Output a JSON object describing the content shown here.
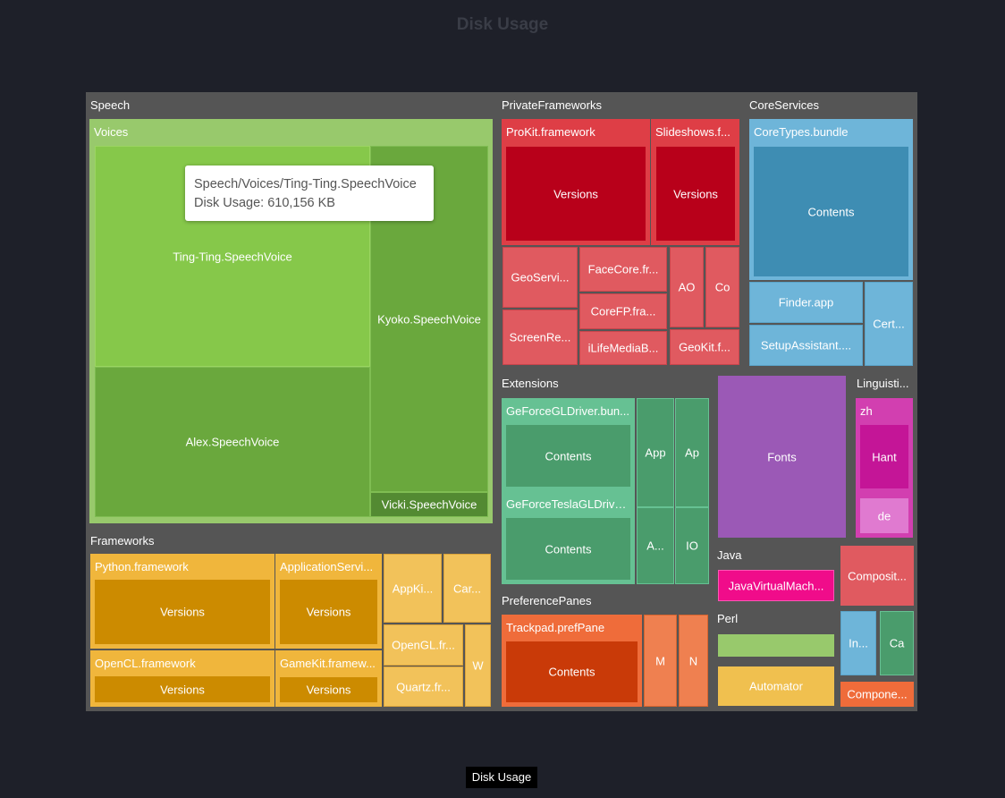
{
  "title": "Disk Usage",
  "legend_label": "Disk Usage",
  "tooltip": {
    "path": "Speech/Voices/Ting-Ting.SpeechVoice",
    "value_text": "Disk Usage: 610,156 KB"
  },
  "colors": {
    "background": "#1e2029",
    "parent": "#555555",
    "speech": "#8ec960",
    "private": "#e0454f",
    "core": "#6eb5d9",
    "extensions": "#66c193",
    "frameworks": "#f0b63c",
    "fonts": "#9b59b6",
    "linguistic": "#d23fb0",
    "pref": "#ef6c3a"
  },
  "chart_data": {
    "type": "treemap",
    "title": "Disk Usage",
    "series_name": "Disk Usage",
    "highlighted": {
      "name": "Ting-Ting.SpeechVoice",
      "path": "Speech/Voices/Ting-Ting.SpeechVoice",
      "value_kb": 610156
    },
    "labels": [
      "Speech",
      "Voices",
      "Ting-Ting.SpeechVoice",
      "Kyoko.SpeechVoice",
      "Alex.SpeechVoice",
      "Vicki.SpeechVoice",
      "PrivateFrameworks",
      "ProKit.framework",
      "Versions",
      "Slideshows.f...",
      "Versions",
      "GeoServi...",
      "ScreenRe...",
      "FaceCore.fr...",
      "CoreFP.fra...",
      "iLifeMediaB...",
      "AO",
      "Co",
      "GeoKit.f...",
      "CoreServices",
      "CoreTypes.bundle",
      "Contents",
      "Finder.app",
      "SetupAssistant....",
      "Cert...",
      "Extensions",
      "GeForceGLDriver.bun...",
      "Contents",
      "GeForceTeslaGLDriver...",
      "Contents",
      "App",
      "Ap",
      "A...",
      "IO",
      "Fonts",
      "Linguisti...",
      "zh",
      "Hant",
      "de",
      "Frameworks",
      "Python.framework",
      "Versions",
      "ApplicationServi...",
      "Versions",
      "OpenCL.framework",
      "Versions",
      "GameKit.framew...",
      "Versions",
      "AppKi...",
      "Car...",
      "OpenGL.fr...",
      "Quartz.fr...",
      "W",
      "PreferencePanes",
      "Trackpad.prefPane",
      "Contents",
      "M",
      "N",
      "Java",
      "JavaVirtualMach...",
      "Composit...",
      "Perl",
      "Automator",
      "In...",
      "Ca",
      "Compone..."
    ]
  }
}
